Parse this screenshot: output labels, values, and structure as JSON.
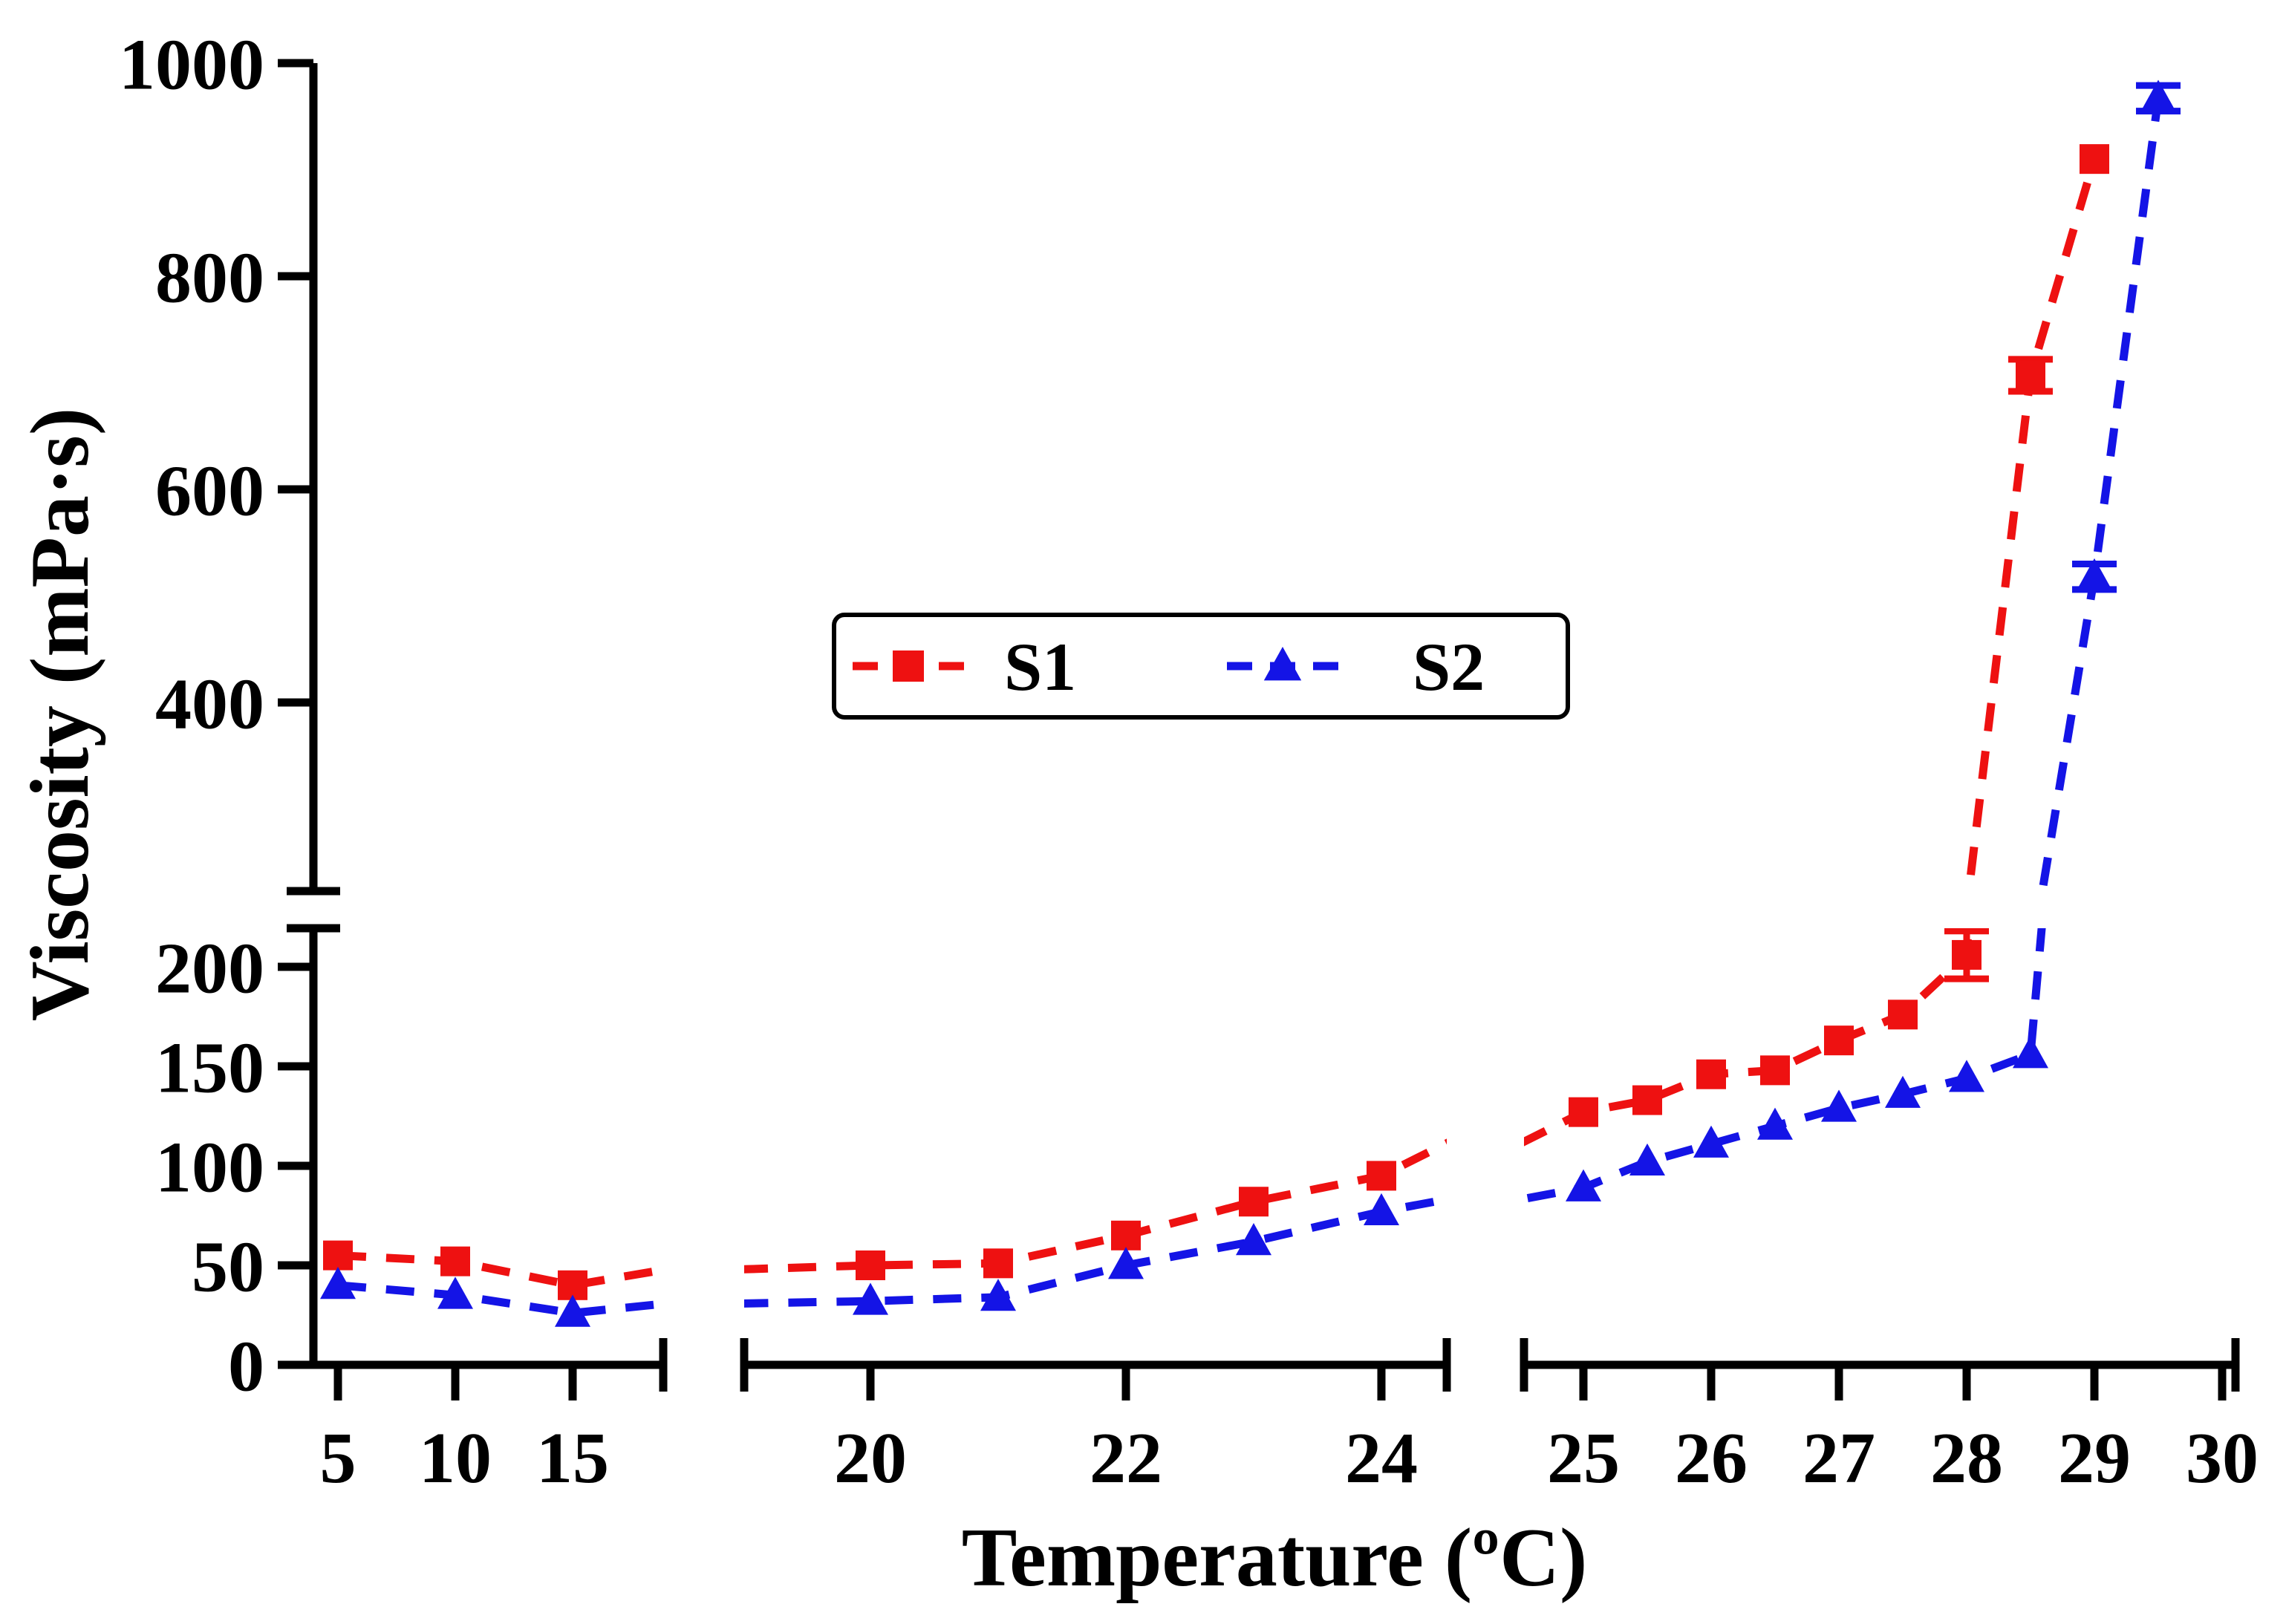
{
  "figure": {
    "background": "#ffffff",
    "axis_color": "#000000"
  },
  "legend": {
    "entries": [
      {
        "label": "S1",
        "color": "#ee1111",
        "marker": "square",
        "line_style": "dashed"
      },
      {
        "label": "S2",
        "color": "#1414e6",
        "marker": "triangle",
        "line_style": "dashed"
      }
    ]
  },
  "chart_data": {
    "type": "line",
    "title": "",
    "xlabel": "Temperature (ºC)",
    "ylabel": "Viscosity (mPa·s)",
    "grid": false,
    "legend_position": "upper-center-inside-box",
    "x_axis": {
      "segmented": true,
      "panels": [
        {
          "ticks": [
            5,
            10,
            15
          ],
          "range": [
            3.95,
            18.9
          ]
        },
        {
          "ticks": [
            20,
            22,
            24
          ],
          "range": [
            19.0,
            24.51
          ]
        },
        {
          "ticks": [
            25,
            26,
            27,
            28,
            29,
            30
          ],
          "range": [
            24.53,
            30.1
          ]
        }
      ]
    },
    "y_axis": {
      "broken": true,
      "lower_ticks": [
        0,
        50,
        100,
        150,
        200
      ],
      "lower_range": [
        0,
        219
      ],
      "upper_ticks": [
        400,
        600,
        800,
        1000
      ],
      "upper_range": [
        223,
        1000
      ]
    },
    "series": [
      {
        "name": "S1",
        "color": "#ee1111",
        "marker": "square",
        "x": [
          5,
          10,
          15,
          20,
          21,
          22,
          23,
          24,
          25,
          25.5,
          26,
          26.5,
          27,
          27.5,
          28,
          28.5,
          29
        ],
        "y": [
          55,
          52,
          40,
          50,
          51,
          65,
          82,
          95,
          127,
          133,
          146,
          148,
          163,
          176,
          206,
          707,
          910
        ],
        "err": [
          0,
          0,
          0,
          0,
          0,
          0,
          0,
          0,
          0,
          0,
          0,
          0,
          0,
          0,
          12,
          15,
          0
        ]
      },
      {
        "name": "S2",
        "color": "#1414e6",
        "marker": "triangle",
        "x": [
          5,
          10,
          15,
          20,
          21,
          22,
          23,
          24,
          25,
          25.5,
          26,
          26.5,
          27,
          27.5,
          28,
          28.5,
          29,
          29.5
        ],
        "y": [
          40,
          35,
          26,
          32,
          34,
          50,
          62,
          77,
          89,
          102,
          111,
          120,
          129,
          136,
          144,
          156,
          518,
          967
        ],
        "err": [
          0,
          0,
          0,
          0,
          0,
          0,
          0,
          0,
          0,
          0,
          0,
          0,
          0,
          0,
          0,
          0,
          12,
          12
        ]
      }
    ]
  }
}
